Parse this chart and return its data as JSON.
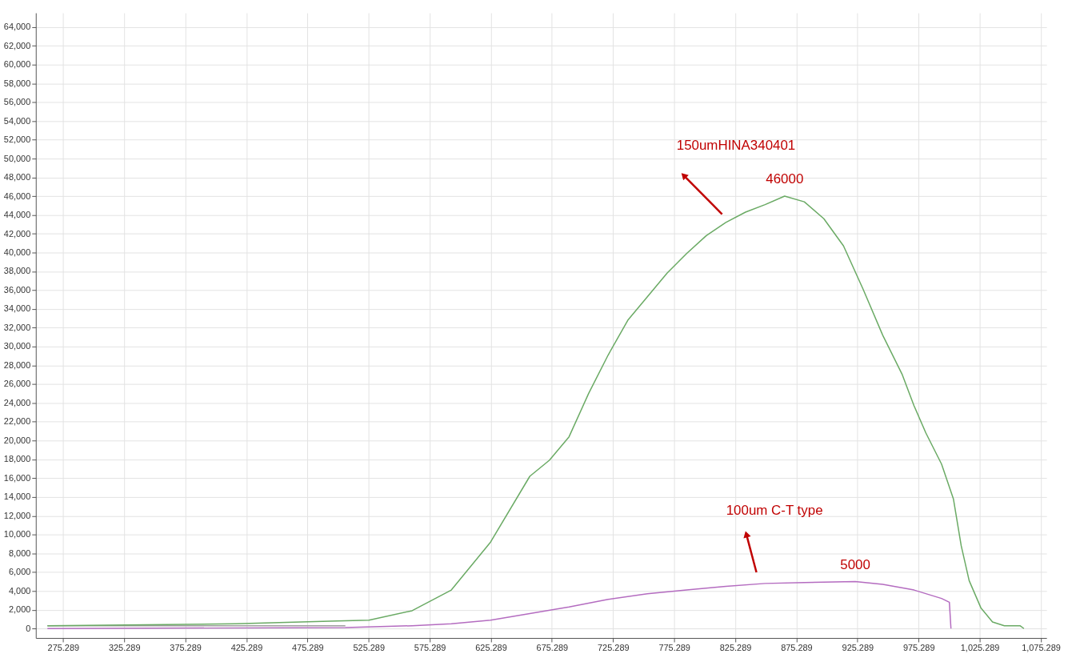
{
  "chart_data": {
    "type": "line",
    "xlim": [
      253,
      1080
    ],
    "ylim": [
      -1000,
      65500
    ],
    "xticks": [
      275.289,
      325.289,
      375.289,
      425.289,
      475.289,
      525.289,
      575.289,
      625.289,
      675.289,
      725.289,
      775.289,
      825.289,
      875.289,
      925.289,
      975.289,
      {
        "value": 1025.289,
        "label": "1,025.289"
      },
      {
        "value": 1075.289,
        "label": "1,075.289"
      }
    ],
    "yticks": [
      0,
      {
        "value": 2000,
        "label": "2,000"
      },
      {
        "value": 4000,
        "label": "4,000"
      },
      {
        "value": 6000,
        "label": "6,000"
      },
      {
        "value": 8000,
        "label": "8,000"
      },
      {
        "value": 10000,
        "label": "10,000"
      },
      {
        "value": 12000,
        "label": "12,000"
      },
      {
        "value": 14000,
        "label": "14,000"
      },
      {
        "value": 16000,
        "label": "16,000"
      },
      {
        "value": 18000,
        "label": "18,000"
      },
      {
        "value": 20000,
        "label": "20,000"
      },
      {
        "value": 22000,
        "label": "22,000"
      },
      {
        "value": 24000,
        "label": "24,000"
      },
      {
        "value": 26000,
        "label": "26,000"
      },
      {
        "value": 28000,
        "label": "28,000"
      },
      {
        "value": 30000,
        "label": "30,000"
      },
      {
        "value": 32000,
        "label": "32,000"
      },
      {
        "value": 34000,
        "label": "34,000"
      },
      {
        "value": 36000,
        "label": "36,000"
      },
      {
        "value": 38000,
        "label": "38,000"
      },
      {
        "value": 40000,
        "label": "40,000"
      },
      {
        "value": 42000,
        "label": "42,000"
      },
      {
        "value": 44000,
        "label": "44,000"
      },
      {
        "value": 46000,
        "label": "46,000"
      },
      {
        "value": 48000,
        "label": "48,000"
      },
      {
        "value": 50000,
        "label": "50,000"
      },
      {
        "value": 52000,
        "label": "52,000"
      },
      {
        "value": 54000,
        "label": "54,000"
      },
      {
        "value": 56000,
        "label": "56,000"
      },
      {
        "value": 58000,
        "label": "58,000"
      },
      {
        "value": 60000,
        "label": "60,000"
      },
      {
        "value": 62000,
        "label": "62,000"
      },
      {
        "value": 64000,
        "label": "64,000"
      }
    ],
    "grid": true,
    "line_style": "solid",
    "marker": "none",
    "series": [
      {
        "color": "#a0a0a0",
        "x": [
          262.5,
          352.3,
          416.5,
          480.7,
          506.3
        ],
        "values": [
          300,
          300,
          300,
          300,
          300
        ]
      },
      {
        "color": "#6aaa64",
        "x": [
          262.5,
          416.5,
          499.5,
          525.6,
          560.9,
          593.0,
          625.1,
          657.2,
          673.2,
          689.3,
          705.3,
          721.3,
          737.4,
          753.4,
          769.5,
          785.5,
          801.6,
          817.6,
          833.7,
          849.7,
          865.7,
          881.8,
          897.8,
          913.9,
          929.9,
          946.0,
          962.0,
          971.6,
          981.3,
          994.1,
          1003.8,
          1010.2,
          1016.7,
          1026.3,
          1035.8,
          1045.5,
          1058.3,
          1061.5
        ],
        "values": [
          300,
          500,
          800,
          900,
          1900,
          4100,
          9200,
          16200,
          17900,
          20400,
          25000,
          29100,
          32800,
          35300,
          37800,
          39900,
          41800,
          43200,
          44300,
          45100,
          46000,
          45400,
          43600,
          40700,
          36100,
          31200,
          27000,
          23700,
          20800,
          17500,
          13800,
          8800,
          5100,
          2200,
          700,
          300,
          300,
          0
        ]
      },
      {
        "color": "#b46cc0",
        "x": [
          262.5,
          506.3,
          560.9,
          593.0,
          625.1,
          657.2,
          689.3,
          721.3,
          753.4,
          785.5,
          817.6,
          849.7,
          881.8,
          923.5,
          946.0,
          971.6,
          994.1,
          1000.5,
          1001.8
        ],
        "values": [
          0,
          100,
          300,
          500,
          900,
          1600,
          2300,
          3100,
          3700,
          4100,
          4500,
          4800,
          4900,
          5000,
          4700,
          4100,
          3200,
          2800,
          0
        ]
      }
    ],
    "annotations": [
      "150umHINA340401",
      {
        "text": "46000",
        "x": 865.7,
        "y": 46000
      },
      "100um C-T type",
      {
        "text": "5000",
        "x": 923.5,
        "y": 5000
      }
    ]
  }
}
